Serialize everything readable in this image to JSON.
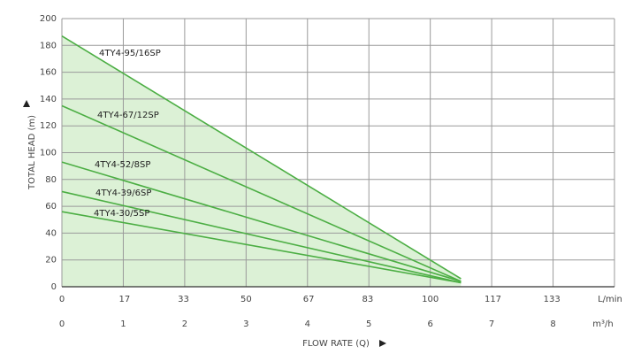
{
  "chart_data": {
    "type": "line",
    "y_label": "TOTAL HEAD (m)",
    "x_label": "FLOW RATE (Q)",
    "x_unit": "m³/h",
    "x2_unit": "L/min",
    "xlim": [
      0,
      9
    ],
    "xticks": [
      0,
      1,
      2,
      3,
      4,
      5,
      6,
      7,
      8
    ],
    "x2lim": [
      0,
      150
    ],
    "x2ticks": [
      0,
      17,
      33,
      50,
      67,
      83,
      100,
      117,
      133
    ],
    "ylim": [
      0,
      200
    ],
    "yticks": [
      0,
      20,
      40,
      60,
      80,
      100,
      120,
      140,
      160,
      180,
      200
    ],
    "grid": true,
    "fill_color": "#dcf1d6",
    "series": [
      {
        "name": "4TY4-95/16SP",
        "color": "#4cae44",
        "x": [
          0,
          6.5
        ],
        "values": [
          187,
          6
        ]
      },
      {
        "name": "4TY4-67/12SP",
        "color": "#4cae44",
        "x": [
          0,
          6.5
        ],
        "values": [
          135,
          4
        ]
      },
      {
        "name": "4TY4-52/8SP",
        "color": "#4cae44",
        "x": [
          0,
          6.5
        ],
        "values": [
          93,
          4
        ]
      },
      {
        "name": "4TY4-39/6SP",
        "color": "#4cae44",
        "x": [
          0,
          6.5
        ],
        "values": [
          71,
          3
        ]
      },
      {
        "name": "4TY4-30/5SP",
        "color": "#4cae44",
        "x": [
          0,
          6.5
        ],
        "values": [
          56,
          3
        ]
      }
    ]
  }
}
